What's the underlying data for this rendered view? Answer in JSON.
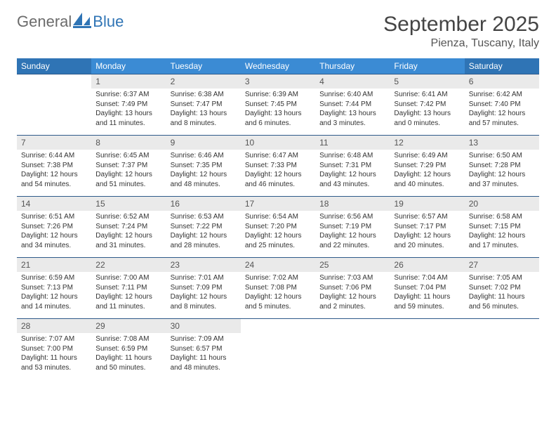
{
  "brand": {
    "word1": "General",
    "word2": "Blue"
  },
  "title": "September 2025",
  "location": "Pienza, Tuscany, Italy",
  "theme": {
    "header_bg": "#3b8bd4",
    "header_bg_weekend": "#2f74b5",
    "daynum_bg": "#eaeaea",
    "rule_color": "#2f5a8a",
    "text_color": "#333333",
    "muted_text": "#555555",
    "logo_text_color": "#6b6b6b",
    "logo_blue": "#2f74b5"
  },
  "day_names": [
    "Sunday",
    "Monday",
    "Tuesday",
    "Wednesday",
    "Thursday",
    "Friday",
    "Saturday"
  ],
  "weeks": [
    [
      null,
      {
        "d": "1",
        "sr": "Sunrise: 6:37 AM",
        "ss": "Sunset: 7:49 PM",
        "dl": "Daylight: 13 hours and 11 minutes."
      },
      {
        "d": "2",
        "sr": "Sunrise: 6:38 AM",
        "ss": "Sunset: 7:47 PM",
        "dl": "Daylight: 13 hours and 8 minutes."
      },
      {
        "d": "3",
        "sr": "Sunrise: 6:39 AM",
        "ss": "Sunset: 7:45 PM",
        "dl": "Daylight: 13 hours and 6 minutes."
      },
      {
        "d": "4",
        "sr": "Sunrise: 6:40 AM",
        "ss": "Sunset: 7:44 PM",
        "dl": "Daylight: 13 hours and 3 minutes."
      },
      {
        "d": "5",
        "sr": "Sunrise: 6:41 AM",
        "ss": "Sunset: 7:42 PM",
        "dl": "Daylight: 13 hours and 0 minutes."
      },
      {
        "d": "6",
        "sr": "Sunrise: 6:42 AM",
        "ss": "Sunset: 7:40 PM",
        "dl": "Daylight: 12 hours and 57 minutes."
      }
    ],
    [
      {
        "d": "7",
        "sr": "Sunrise: 6:44 AM",
        "ss": "Sunset: 7:38 PM",
        "dl": "Daylight: 12 hours and 54 minutes."
      },
      {
        "d": "8",
        "sr": "Sunrise: 6:45 AM",
        "ss": "Sunset: 7:37 PM",
        "dl": "Daylight: 12 hours and 51 minutes."
      },
      {
        "d": "9",
        "sr": "Sunrise: 6:46 AM",
        "ss": "Sunset: 7:35 PM",
        "dl": "Daylight: 12 hours and 48 minutes."
      },
      {
        "d": "10",
        "sr": "Sunrise: 6:47 AM",
        "ss": "Sunset: 7:33 PM",
        "dl": "Daylight: 12 hours and 46 minutes."
      },
      {
        "d": "11",
        "sr": "Sunrise: 6:48 AM",
        "ss": "Sunset: 7:31 PM",
        "dl": "Daylight: 12 hours and 43 minutes."
      },
      {
        "d": "12",
        "sr": "Sunrise: 6:49 AM",
        "ss": "Sunset: 7:29 PM",
        "dl": "Daylight: 12 hours and 40 minutes."
      },
      {
        "d": "13",
        "sr": "Sunrise: 6:50 AM",
        "ss": "Sunset: 7:28 PM",
        "dl": "Daylight: 12 hours and 37 minutes."
      }
    ],
    [
      {
        "d": "14",
        "sr": "Sunrise: 6:51 AM",
        "ss": "Sunset: 7:26 PM",
        "dl": "Daylight: 12 hours and 34 minutes."
      },
      {
        "d": "15",
        "sr": "Sunrise: 6:52 AM",
        "ss": "Sunset: 7:24 PM",
        "dl": "Daylight: 12 hours and 31 minutes."
      },
      {
        "d": "16",
        "sr": "Sunrise: 6:53 AM",
        "ss": "Sunset: 7:22 PM",
        "dl": "Daylight: 12 hours and 28 minutes."
      },
      {
        "d": "17",
        "sr": "Sunrise: 6:54 AM",
        "ss": "Sunset: 7:20 PM",
        "dl": "Daylight: 12 hours and 25 minutes."
      },
      {
        "d": "18",
        "sr": "Sunrise: 6:56 AM",
        "ss": "Sunset: 7:19 PM",
        "dl": "Daylight: 12 hours and 22 minutes."
      },
      {
        "d": "19",
        "sr": "Sunrise: 6:57 AM",
        "ss": "Sunset: 7:17 PM",
        "dl": "Daylight: 12 hours and 20 minutes."
      },
      {
        "d": "20",
        "sr": "Sunrise: 6:58 AM",
        "ss": "Sunset: 7:15 PM",
        "dl": "Daylight: 12 hours and 17 minutes."
      }
    ],
    [
      {
        "d": "21",
        "sr": "Sunrise: 6:59 AM",
        "ss": "Sunset: 7:13 PM",
        "dl": "Daylight: 12 hours and 14 minutes."
      },
      {
        "d": "22",
        "sr": "Sunrise: 7:00 AM",
        "ss": "Sunset: 7:11 PM",
        "dl": "Daylight: 12 hours and 11 minutes."
      },
      {
        "d": "23",
        "sr": "Sunrise: 7:01 AM",
        "ss": "Sunset: 7:09 PM",
        "dl": "Daylight: 12 hours and 8 minutes."
      },
      {
        "d": "24",
        "sr": "Sunrise: 7:02 AM",
        "ss": "Sunset: 7:08 PM",
        "dl": "Daylight: 12 hours and 5 minutes."
      },
      {
        "d": "25",
        "sr": "Sunrise: 7:03 AM",
        "ss": "Sunset: 7:06 PM",
        "dl": "Daylight: 12 hours and 2 minutes."
      },
      {
        "d": "26",
        "sr": "Sunrise: 7:04 AM",
        "ss": "Sunset: 7:04 PM",
        "dl": "Daylight: 11 hours and 59 minutes."
      },
      {
        "d": "27",
        "sr": "Sunrise: 7:05 AM",
        "ss": "Sunset: 7:02 PM",
        "dl": "Daylight: 11 hours and 56 minutes."
      }
    ],
    [
      {
        "d": "28",
        "sr": "Sunrise: 7:07 AM",
        "ss": "Sunset: 7:00 PM",
        "dl": "Daylight: 11 hours and 53 minutes."
      },
      {
        "d": "29",
        "sr": "Sunrise: 7:08 AM",
        "ss": "Sunset: 6:59 PM",
        "dl": "Daylight: 11 hours and 50 minutes."
      },
      {
        "d": "30",
        "sr": "Sunrise: 7:09 AM",
        "ss": "Sunset: 6:57 PM",
        "dl": "Daylight: 11 hours and 48 minutes."
      },
      null,
      null,
      null,
      null
    ]
  ]
}
